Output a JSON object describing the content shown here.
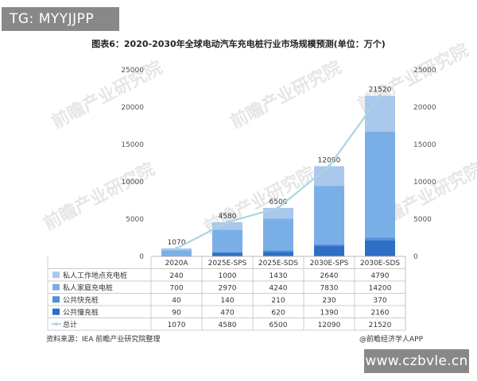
{
  "watermarks": {
    "top_left": "TG: MYYJJPP",
    "bottom_right": "www.czbvle.cn",
    "logo_text": "前瞻产业研究院"
  },
  "footer": {
    "source": "资料来源：IEA 前瞻产业研究院整理",
    "credit": "@前瞻经济学人APP"
  },
  "chart_data": {
    "type": "bar",
    "title": "图表6：2020-2030年全球电动汽车充电桩行业市场规模预测(单位：万个)",
    "categories": [
      "2020A",
      "2025E-SPS",
      "2025E-SDS",
      "2030E-SPS",
      "2030E-SDS"
    ],
    "y_left": {
      "ticks": [
        0,
        5000,
        10000,
        15000,
        20000,
        25000
      ],
      "range": [
        0,
        25000
      ]
    },
    "y_right": {
      "ticks": [
        0,
        5000,
        10000,
        15000,
        20000,
        25000
      ],
      "range": [
        0,
        25000
      ]
    },
    "stacked": true,
    "series": [
      {
        "name": "私人工作地点充电桩",
        "color": "#a9c8ec",
        "values": [
          240,
          1000,
          1430,
          2640,
          4790
        ]
      },
      {
        "name": "私人家庭充电桩",
        "color": "#7aaee6",
        "values": [
          700,
          2970,
          4240,
          7830,
          14200
        ]
      },
      {
        "name": "公共快充桩",
        "color": "#4f8fd9",
        "values": [
          40,
          140,
          210,
          230,
          370
        ]
      },
      {
        "name": "公共慢充桩",
        "color": "#2e6fc5",
        "values": [
          90,
          470,
          620,
          1390,
          2160
        ]
      }
    ],
    "line": {
      "name": "总计",
      "color": "#a9d4e0",
      "values": [
        1070,
        4580,
        6500,
        12090,
        21520
      ]
    },
    "data_labels": [
      "1070",
      "4580",
      "6500",
      "12090",
      "21520"
    ],
    "legend": "table-below"
  }
}
